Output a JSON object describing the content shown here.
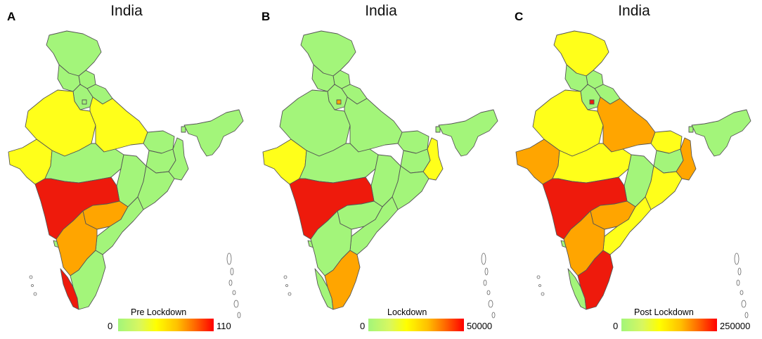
{
  "colors": {
    "low": "#a3f57a",
    "yellow": "#ffff1a",
    "orange": "#ffa500",
    "red": "#ee1a0c",
    "border": "#555555"
  },
  "panels": [
    {
      "letter": "A",
      "title": "India",
      "legend": {
        "label": "Pre Lockdown",
        "min": "0",
        "max": "110"
      },
      "highlights": [
        {
          "region": "jammu-kashmir",
          "level": "low"
        },
        {
          "region": "rajasthan",
          "level": "yellow"
        },
        {
          "region": "gujarat",
          "level": "yellow"
        },
        {
          "region": "uttar-pradesh",
          "level": "yellow"
        },
        {
          "region": "maharashtra",
          "level": "red"
        },
        {
          "region": "telangana",
          "level": "orange"
        },
        {
          "region": "karnataka",
          "level": "orange"
        },
        {
          "region": "kerala",
          "level": "red"
        },
        {
          "region": "madhya-pradesh",
          "level": "low"
        },
        {
          "region": "tamil-nadu",
          "level": "low"
        }
      ]
    },
    {
      "letter": "B",
      "title": "India",
      "legend": {
        "label": "Lockdown",
        "min": "0",
        "max": "50000"
      },
      "highlights": [
        {
          "region": "gujarat",
          "level": "yellow"
        },
        {
          "region": "maharashtra",
          "level": "red"
        },
        {
          "region": "tamil-nadu",
          "level": "orange"
        },
        {
          "region": "west-bengal",
          "level": "yellow"
        },
        {
          "region": "delhi",
          "level": "orange"
        }
      ]
    },
    {
      "letter": "C",
      "title": "India",
      "legend": {
        "label": "Post Lockdown",
        "min": "0",
        "max": "250000"
      },
      "highlights": [
        {
          "region": "jammu-kashmir",
          "level": "yellow"
        },
        {
          "region": "rajasthan",
          "level": "yellow"
        },
        {
          "region": "gujarat",
          "level": "orange"
        },
        {
          "region": "uttar-pradesh",
          "level": "orange"
        },
        {
          "region": "madhya-pradesh",
          "level": "yellow"
        },
        {
          "region": "maharashtra",
          "level": "red"
        },
        {
          "region": "telangana",
          "level": "orange"
        },
        {
          "region": "andhra-pradesh",
          "level": "yellow"
        },
        {
          "region": "karnataka",
          "level": "orange"
        },
        {
          "region": "tamil-nadu",
          "level": "red"
        },
        {
          "region": "west-bengal",
          "level": "orange"
        },
        {
          "region": "bihar",
          "level": "yellow"
        },
        {
          "region": "odisha",
          "level": "yellow"
        },
        {
          "region": "delhi",
          "level": "red"
        }
      ]
    }
  ]
}
